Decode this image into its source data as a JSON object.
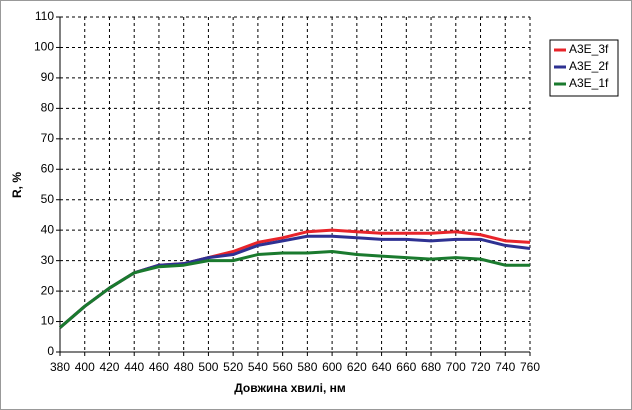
{
  "chart_data": {
    "type": "line",
    "x_label": "Довжина хвилі, нм",
    "y_label": "R, %",
    "x": [
      380,
      400,
      420,
      440,
      460,
      480,
      500,
      520,
      540,
      560,
      580,
      600,
      620,
      640,
      660,
      680,
      700,
      720,
      740,
      760
    ],
    "series": [
      {
        "name": "A3E_3f",
        "color": "#e8242a",
        "values": [
          8,
          15,
          21,
          26,
          28.5,
          29,
          31,
          33,
          36,
          37.5,
          39.5,
          40,
          39.5,
          39,
          39,
          39,
          39.5,
          38.5,
          36.5,
          36
        ]
      },
      {
        "name": "A3E_2f",
        "color": "#2e3192",
        "values": [
          8,
          15,
          21,
          26,
          28.5,
          29,
          31,
          32,
          35,
          36.5,
          38,
          38,
          37.5,
          37,
          37,
          36.5,
          37,
          37,
          35,
          34
        ]
      },
      {
        "name": "A3E_1f",
        "color": "#1a7a2e",
        "values": [
          8,
          15,
          21,
          26,
          28,
          28.5,
          30,
          30,
          32,
          32.5,
          32.5,
          33,
          32,
          31.5,
          31,
          30.5,
          31,
          30.5,
          28.5,
          28.5
        ]
      }
    ],
    "xlim": [
      380,
      760
    ],
    "xticks": [
      380,
      400,
      420,
      440,
      460,
      480,
      500,
      520,
      540,
      560,
      580,
      600,
      620,
      640,
      660,
      680,
      700,
      720,
      740,
      760
    ],
    "ylim": [
      0,
      110
    ],
    "yticks": [
      0,
      10,
      20,
      30,
      40,
      50,
      60,
      70,
      80,
      90,
      100,
      110
    ],
    "grid": true,
    "legend": "top-right"
  }
}
